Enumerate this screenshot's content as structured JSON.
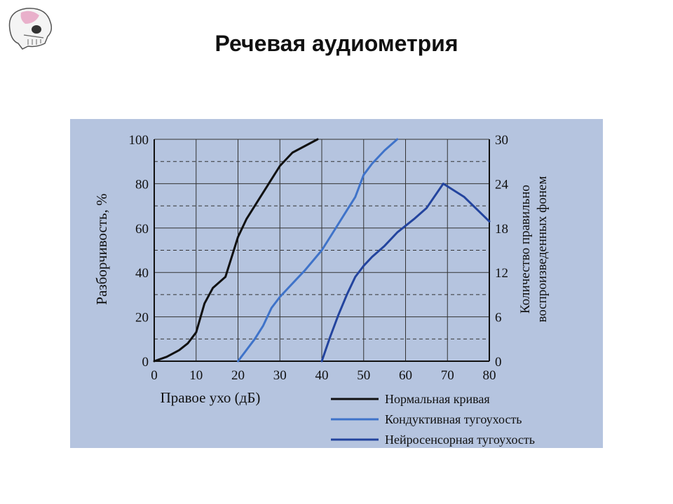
{
  "slide": {
    "title": "Речевая аудиометрия",
    "logo_icon": "skull-icon"
  },
  "chart_data": {
    "type": "line",
    "xlabel": "Правое ухо (дБ)",
    "ylabel_left": "Разборчивость, %",
    "ylabel_right": "Количество правильно воспроизведенных фонем",
    "xlim": [
      0,
      80
    ],
    "ylim_left": [
      0,
      100
    ],
    "ylim_right": [
      0,
      30
    ],
    "x_ticks": [
      "0",
      "10",
      "20",
      "30",
      "40",
      "50",
      "60",
      "70",
      "80"
    ],
    "y_ticks_left": [
      "0",
      "20",
      "40",
      "60",
      "80",
      "100"
    ],
    "y_ticks_right": [
      "0",
      "6",
      "12",
      "18",
      "24",
      "30"
    ],
    "grid": true,
    "legend_position": "bottom-right",
    "series": [
      {
        "name": "Нормальная кривая",
        "color": "#111111",
        "x": [
          0,
          3,
          6,
          8,
          10,
          12,
          14,
          17,
          20,
          22,
          25,
          28,
          30,
          33,
          36,
          39
        ],
        "y": [
          0,
          2,
          5,
          8,
          13,
          26,
          33,
          38,
          56,
          64,
          73,
          82,
          88,
          94,
          97,
          100
        ]
      },
      {
        "name": "Кондуктивная тугоухость",
        "color": "#3f73c9",
        "x": [
          20,
          22,
          24,
          26,
          28,
          30,
          32,
          34,
          36,
          40,
          42,
          44,
          46,
          48,
          50,
          52,
          55,
          58
        ],
        "y": [
          0,
          5,
          10,
          16,
          24,
          29,
          33,
          37,
          41,
          50,
          56,
          62,
          68,
          74,
          84,
          89,
          95,
          100
        ]
      },
      {
        "name": "Нейросенсорная тугоухость",
        "color": "#23449e",
        "x": [
          40,
          42,
          44,
          46,
          48,
          50,
          52,
          55,
          58,
          60,
          62,
          65,
          69,
          74,
          80
        ],
        "y": [
          0,
          11,
          21,
          30,
          38,
          43,
          47,
          52,
          58,
          61,
          64,
          69,
          80,
          74,
          63
        ]
      }
    ]
  }
}
